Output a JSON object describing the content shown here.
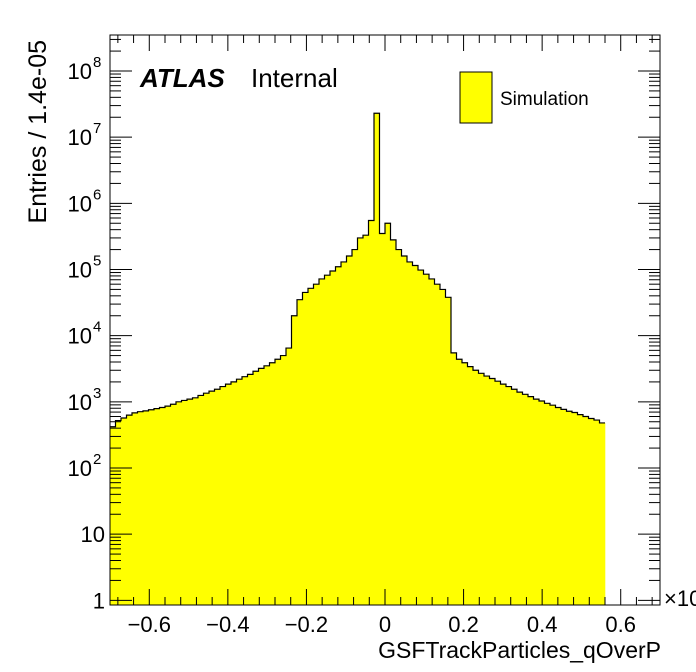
{
  "chart_data": {
    "type": "histogram",
    "title": "",
    "xlabel": "GSFTrackParticles_qOverP",
    "ylabel": "Entries / 1.4e-05",
    "x_exponent_label": "×10",
    "xlim": [
      -0.7,
      0.7
    ],
    "ylim": [
      0.85,
      350000000.0
    ],
    "y_scale": "log",
    "atlas_label": "ATLAS",
    "atlas_sublabel": "Internal",
    "legend": {
      "entries": [
        "Simulation"
      ],
      "position": "top-right"
    },
    "x_ticks": [
      {
        "value": -0.6,
        "label": "−0.6"
      },
      {
        "value": -0.4,
        "label": "−0.4"
      },
      {
        "value": -0.2,
        "label": "−0.2"
      },
      {
        "value": 0,
        "label": "0"
      },
      {
        "value": 0.2,
        "label": "0.2"
      },
      {
        "value": 0.4,
        "label": "0.4"
      },
      {
        "value": 0.6,
        "label": "0.6"
      }
    ],
    "y_ticks": [
      {
        "value": 1,
        "base": "1",
        "exp": ""
      },
      {
        "value": 10,
        "base": "10",
        "exp": ""
      },
      {
        "value": 100,
        "base": "10",
        "exp": "2"
      },
      {
        "value": 1000,
        "base": "10",
        "exp": "3"
      },
      {
        "value": 10000,
        "base": "10",
        "exp": "4"
      },
      {
        "value": 100000,
        "base": "10",
        "exp": "5"
      },
      {
        "value": 1000000,
        "base": "10",
        "exp": "6"
      },
      {
        "value": 10000000,
        "base": "10",
        "exp": "7"
      },
      {
        "value": 100000000,
        "base": "10",
        "exp": "8"
      }
    ],
    "series": [
      {
        "name": "Simulation",
        "color": "#ffff00",
        "edge_color": "#000000",
        "bin_edges_from": -0.7,
        "bin_width": 0.014,
        "values": [
          420,
          520,
          570,
          630,
          680,
          710,
          730,
          760,
          790,
          820,
          860,
          920,
          1000,
          1050,
          1100,
          1150,
          1250,
          1350,
          1450,
          1550,
          1700,
          1850,
          2000,
          2200,
          2400,
          2600,
          2900,
          3200,
          3500,
          3900,
          4400,
          5000,
          6500,
          20000,
          35000,
          45000,
          52000,
          60000,
          72000,
          82000,
          95000,
          110000,
          130000,
          160000,
          200000,
          300000,
          330000,
          550000,
          23000000,
          350000,
          500000,
          280000,
          200000,
          160000,
          130000,
          115000,
          98000,
          85000,
          72000,
          60000,
          50000,
          38000,
          5500,
          4400,
          3900,
          3400,
          3000,
          2700,
          2450,
          2250,
          2050,
          1850,
          1700,
          1550,
          1400,
          1300,
          1200,
          1100,
          1030,
          950,
          890,
          820,
          770,
          720,
          690,
          640,
          600,
          560,
          530,
          480
        ]
      }
    ]
  }
}
